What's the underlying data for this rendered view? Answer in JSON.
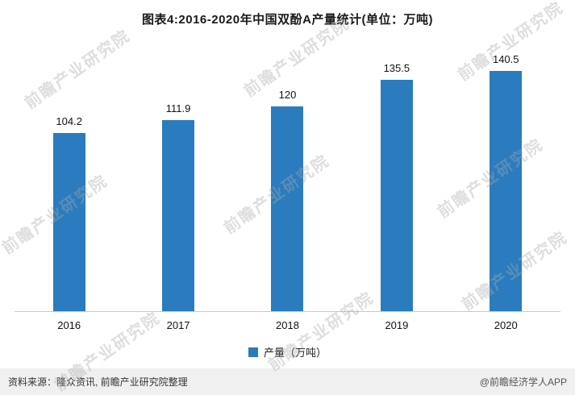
{
  "title": "图表4:2016-2020年中国双酚A产量统计(单位：万吨)",
  "chart_data": {
    "type": "bar",
    "categories": [
      "2016",
      "2017",
      "2018",
      "2019",
      "2020"
    ],
    "values": [
      104.2,
      111.9,
      120,
      135.5,
      140.5
    ],
    "value_labels": [
      "104.2",
      "111.9",
      "120",
      "135.5",
      "140.5"
    ],
    "title": "图表4:2016-2020年中国双酚A产量统计(单位：万吨)",
    "xlabel": "",
    "ylabel": "",
    "ylim": [
      0,
      160
    ],
    "grid": false,
    "legend": [
      "产量（万吨）"
    ],
    "legend_position": "bottom",
    "bar_color": "#2a7cbe"
  },
  "legend": {
    "label": "产量（万吨）"
  },
  "footer": {
    "source": "资料来源：隆众资讯, 前瞻产业研究院整理",
    "credit": "@前瞻经济学人APP"
  },
  "watermark": {
    "text": "前瞻产业研究院"
  },
  "colors": {
    "bar": "#2a7cbe",
    "footer_bg": "#f0f0f0"
  }
}
